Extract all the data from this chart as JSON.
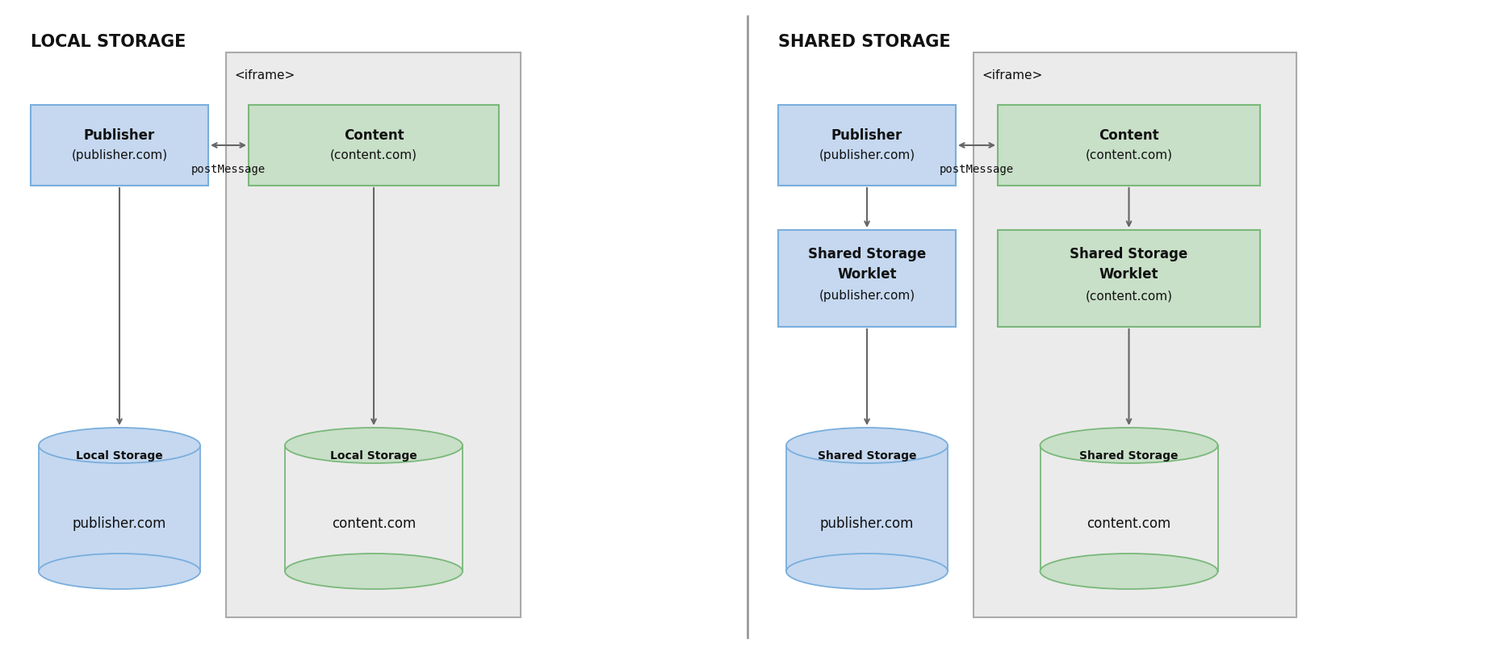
{
  "bg_color": "#ffffff",
  "left_title": "LOCAL STORAGE",
  "right_title": "SHARED STORAGE",
  "iframe_label": "<iframe>",
  "blue_fill": "#c5d8f0",
  "blue_edge": "#7aaedc",
  "green_fill": "#c8dfc8",
  "green_edge": "#7ab87a",
  "iframe_fill": "#ebebeb",
  "iframe_edge": "#aaaaaa",
  "arrow_color": "#666666",
  "text_color": "#111111",
  "post_message_label": "postMessage"
}
